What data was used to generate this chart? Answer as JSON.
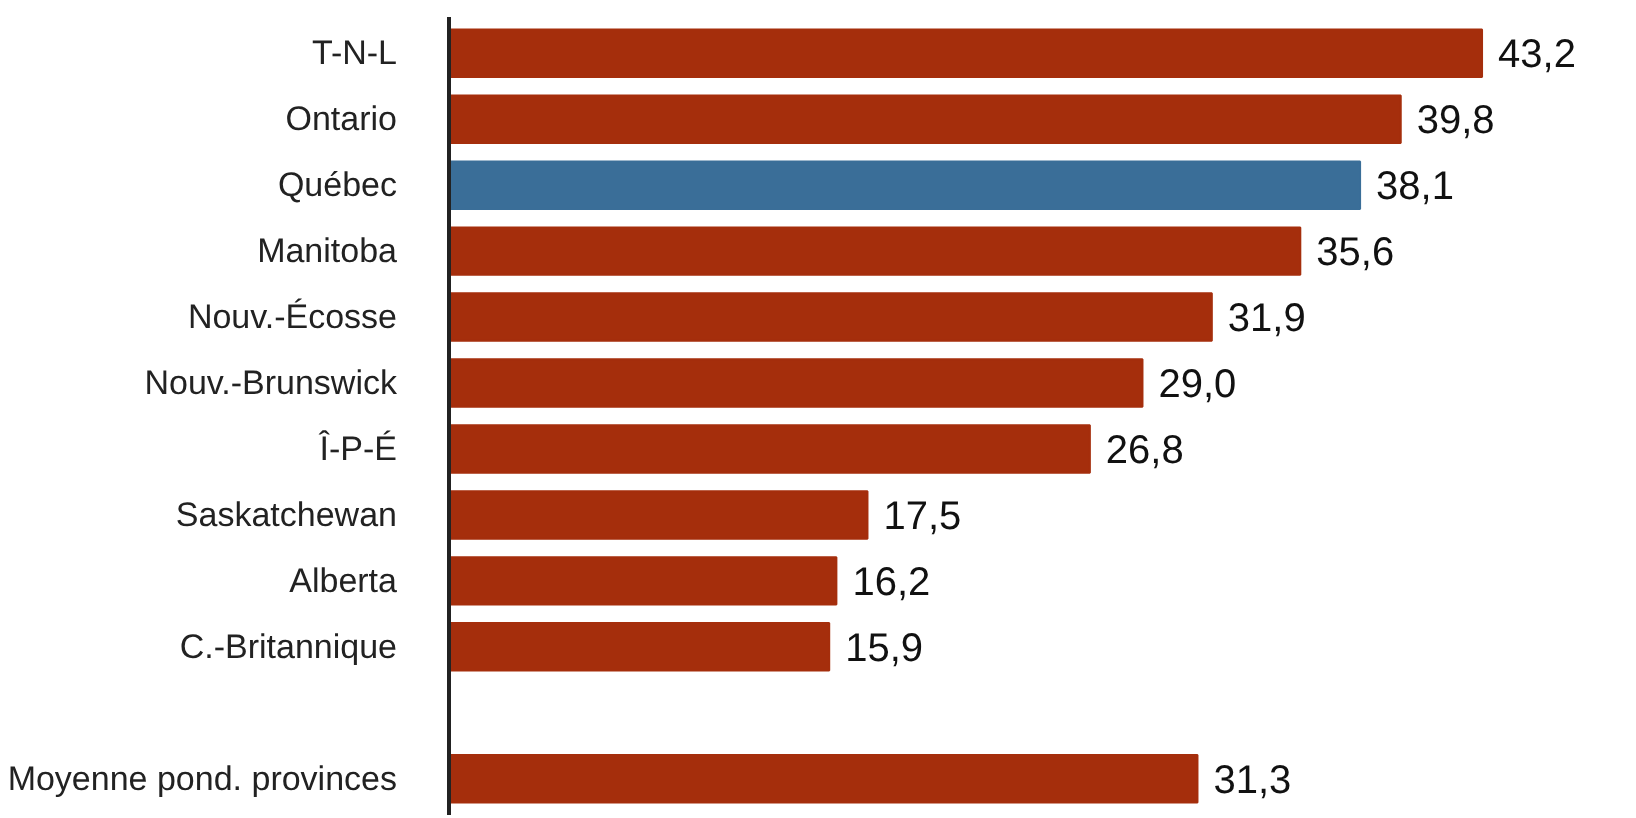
{
  "chart_data": {
    "type": "bar",
    "orientation": "horizontal",
    "categories": [
      "T-N-L",
      "Ontario",
      "Québec",
      "Manitoba",
      "Nouv.-Écosse",
      "Nouv.-Brunswick",
      "Î-P-É",
      "Saskatchewan",
      "Alberta",
      "C.-Britannique",
      null,
      "Moyenne pond. provinces"
    ],
    "values": [
      43.2,
      39.8,
      38.1,
      35.6,
      31.9,
      29.0,
      26.8,
      17.5,
      16.2,
      15.9,
      null,
      31.3
    ],
    "colors": [
      "#a52e0c",
      "#a52e0c",
      "#3a6e98",
      "#a52e0c",
      "#a52e0c",
      "#a52e0c",
      "#a52e0c",
      "#a52e0c",
      "#a52e0c",
      "#a52e0c",
      "#a52e0c",
      "#a52e0c"
    ],
    "value_labels": [
      "43,2",
      "39,8",
      "38,1",
      "35,6",
      "31,9",
      "29,0",
      "26,8",
      "17,5",
      "16,2",
      "15,9",
      null,
      "31,3"
    ],
    "grid": false
  }
}
